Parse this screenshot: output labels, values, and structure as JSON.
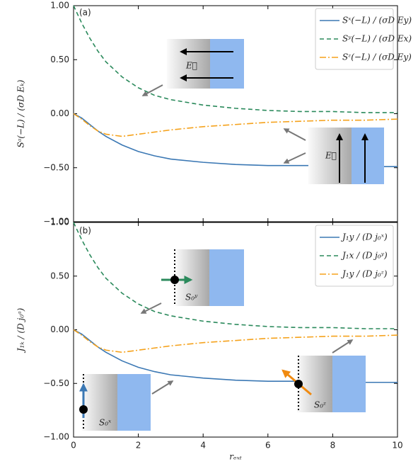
{
  "chart_data": [
    {
      "type": "line",
      "ylabel": "Sᵃ(−L) / (σD Eₖ)",
      "xlim": [
        0,
        10
      ],
      "xticks": [
        0,
        2,
        4,
        6,
        8,
        10
      ],
      "ylim": [
        -1,
        1
      ],
      "yticks": [
        {
          "value": -1,
          "label": "−1.00"
        },
        {
          "value": -0.5,
          "label": "−0.50"
        },
        {
          "value": 0,
          "label": "0.00"
        },
        {
          "value": 0.5,
          "label": "0.50"
        },
        {
          "value": 1,
          "label": "1.00"
        }
      ],
      "x": [
        0,
        0.25,
        0.5,
        0.75,
        1,
        1.5,
        2,
        2.5,
        3,
        4,
        5,
        6,
        7,
        8,
        9,
        10
      ],
      "series": [
        {
          "name": "Sˣ(−L) / (σD Ey)",
          "color": "#3b78b4",
          "linestyle": "solid",
          "values": [
            0,
            -0.04,
            -0.1,
            -0.16,
            -0.21,
            -0.29,
            -0.35,
            -0.39,
            -0.42,
            -0.45,
            -0.47,
            -0.48,
            -0.48,
            -0.48,
            -0.49,
            -0.49
          ]
        },
        {
          "name": "Sʸ(−L) / (σD Ex)",
          "color": "#2b8a5c",
          "linestyle": "dashed",
          "values": [
            1,
            0.84,
            0.7,
            0.58,
            0.48,
            0.34,
            0.24,
            0.17,
            0.13,
            0.08,
            0.05,
            0.03,
            0.02,
            0.02,
            0.01,
            0.01
          ]
        },
        {
          "name": "Sᶻ(−L) / (σD Ey)",
          "color": "#f5a21c",
          "linestyle": "dashdot",
          "values": [
            0,
            -0.05,
            -0.11,
            -0.16,
            -0.19,
            -0.21,
            -0.19,
            -0.17,
            -0.15,
            -0.12,
            -0.1,
            -0.08,
            -0.07,
            -0.06,
            -0.06,
            -0.05
          ]
        }
      ],
      "legend": "upper right",
      "annotations": [
        "(a)",
        "E⃗",
        "E⃗"
      ]
    },
    {
      "type": "line",
      "ylabel": "J₁ₖ / (D j₀ᵃ)",
      "xlabel": "rₑₓₜ",
      "xlim": [
        0,
        10
      ],
      "xticks": [
        0,
        2,
        4,
        6,
        8,
        10
      ],
      "ylim": [
        -1,
        1
      ],
      "yticks": [
        {
          "value": -1,
          "label": "−1.00"
        },
        {
          "value": -0.5,
          "label": "−0.50"
        },
        {
          "value": 0,
          "label": "0.00"
        },
        {
          "value": 0.5,
          "label": "0.50"
        },
        {
          "value": 1,
          "label": "1.00"
        }
      ],
      "x": [
        0,
        0.25,
        0.5,
        0.75,
        1,
        1.5,
        2,
        2.5,
        3,
        4,
        5,
        6,
        7,
        8,
        9,
        10
      ],
      "series": [
        {
          "name": "J₁y / (D j₀ˣ)",
          "color": "#3b78b4",
          "linestyle": "solid",
          "values": [
            0,
            -0.04,
            -0.1,
            -0.16,
            -0.21,
            -0.29,
            -0.35,
            -0.39,
            -0.42,
            -0.45,
            -0.47,
            -0.48,
            -0.48,
            -0.48,
            -0.49,
            -0.49
          ]
        },
        {
          "name": "J₁x / (D j₀ʸ)",
          "color": "#2b8a5c",
          "linestyle": "dashed",
          "values": [
            1,
            0.84,
            0.7,
            0.58,
            0.48,
            0.34,
            0.24,
            0.17,
            0.13,
            0.08,
            0.05,
            0.03,
            0.02,
            0.02,
            0.01,
            0.01
          ]
        },
        {
          "name": "J₁y / (D j₀ᶻ)",
          "color": "#f5a21c",
          "linestyle": "dashdot",
          "values": [
            0,
            -0.05,
            -0.11,
            -0.16,
            -0.19,
            -0.21,
            -0.19,
            -0.17,
            -0.15,
            -0.12,
            -0.1,
            -0.08,
            -0.07,
            -0.06,
            -0.06,
            -0.05
          ]
        }
      ],
      "legend": "upper right",
      "annotations": [
        "(b)",
        "S₀ʸ",
        "S₀ˣ",
        "S₀ᶻ"
      ]
    }
  ]
}
